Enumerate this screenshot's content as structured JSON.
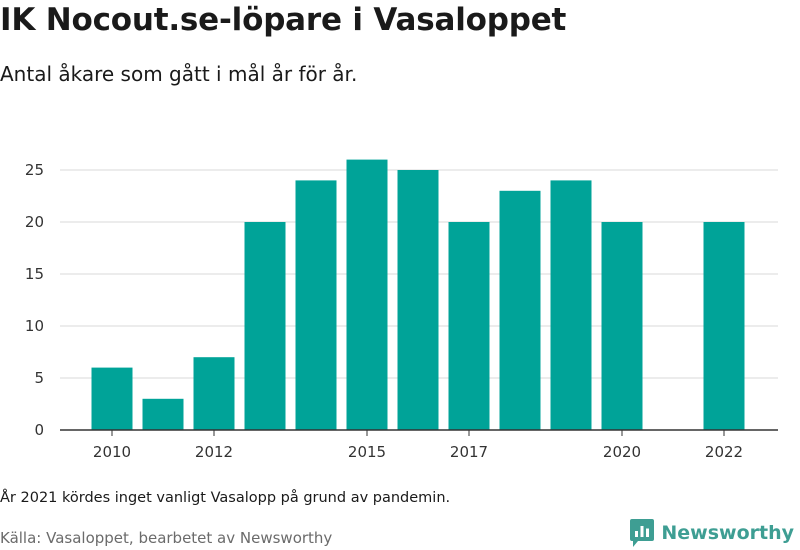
{
  "header": {
    "title": "IK Nocout.se-löpare i Vasaloppet",
    "subtitle": "Antal åkare som gått i mål år för år."
  },
  "footer": {
    "note": "År 2021 kördes inget vanligt Vasalopp på grund av pandemin.",
    "source": "Källa: Vasaloppet, bearbetet av Newsworthy",
    "brand_name": "Newsworthy",
    "brand_icon": "newsworthy-logo-icon"
  },
  "colors": {
    "bar": "#00a398",
    "grid": "#d9d9d9",
    "axis": "#333333",
    "brand": "#3e9e93"
  },
  "chart_data": {
    "type": "bar",
    "title": "IK Nocout.se-löpare i Vasaloppet",
    "subtitle": "Antal åkare som gått i mål år för år.",
    "categories": [
      2010,
      2011,
      2012,
      2013,
      2014,
      2015,
      2016,
      2017,
      2018,
      2019,
      2020,
      2021,
      2022
    ],
    "values": [
      6,
      3,
      7,
      20,
      24,
      26,
      25,
      20,
      23,
      24,
      20,
      null,
      20
    ],
    "x_tick_labels": [
      "2010",
      "2012",
      "2015",
      "2017",
      "2020",
      "2022"
    ],
    "y_ticks": [
      0,
      5,
      10,
      15,
      20,
      25
    ],
    "ylim": [
      0,
      26
    ],
    "xlabel": "",
    "ylabel": "",
    "grid": true,
    "legend": "none"
  }
}
